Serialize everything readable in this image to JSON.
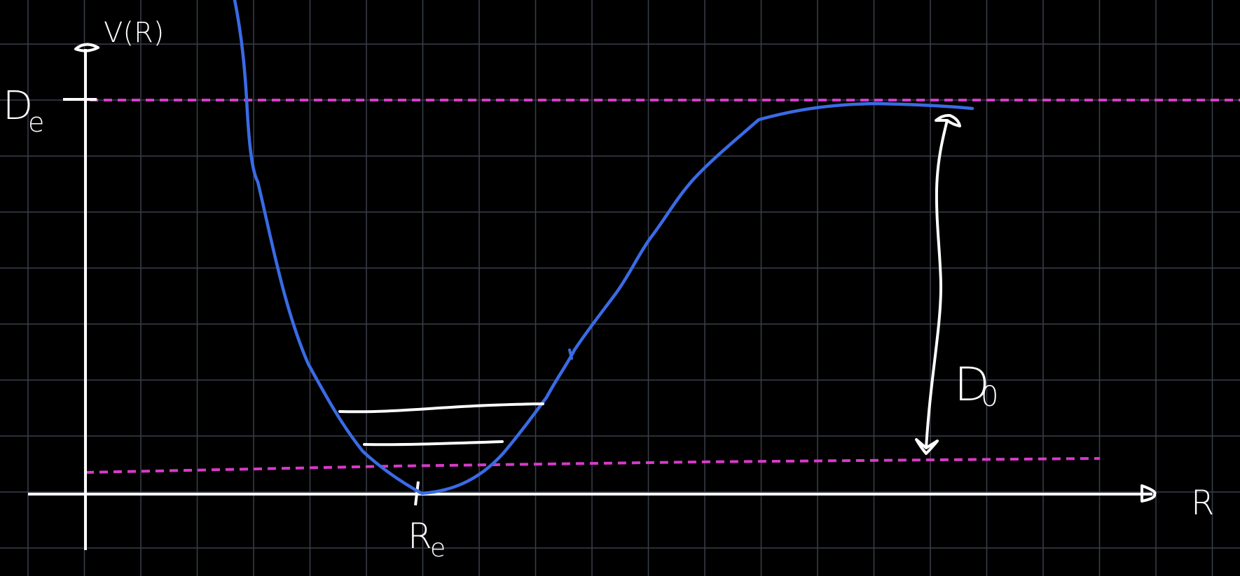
{
  "labels": {
    "y_axis": "V(R)",
    "x_axis": "R",
    "well_depth": "D",
    "well_depth_sub": "e",
    "equilibrium": "R",
    "equilibrium_sub": "e",
    "dissociation": "D",
    "dissociation_sub": "0"
  },
  "colors": {
    "background": "#000000",
    "grid": "#3a3f4a",
    "axes": "#ffffff",
    "curve": "#3a6be6",
    "dashed": "#d63bc8",
    "levels": "#ffffff"
  },
  "icons": [
    "axis-arrow-icon",
    "double-headed-arrow-icon"
  ]
}
